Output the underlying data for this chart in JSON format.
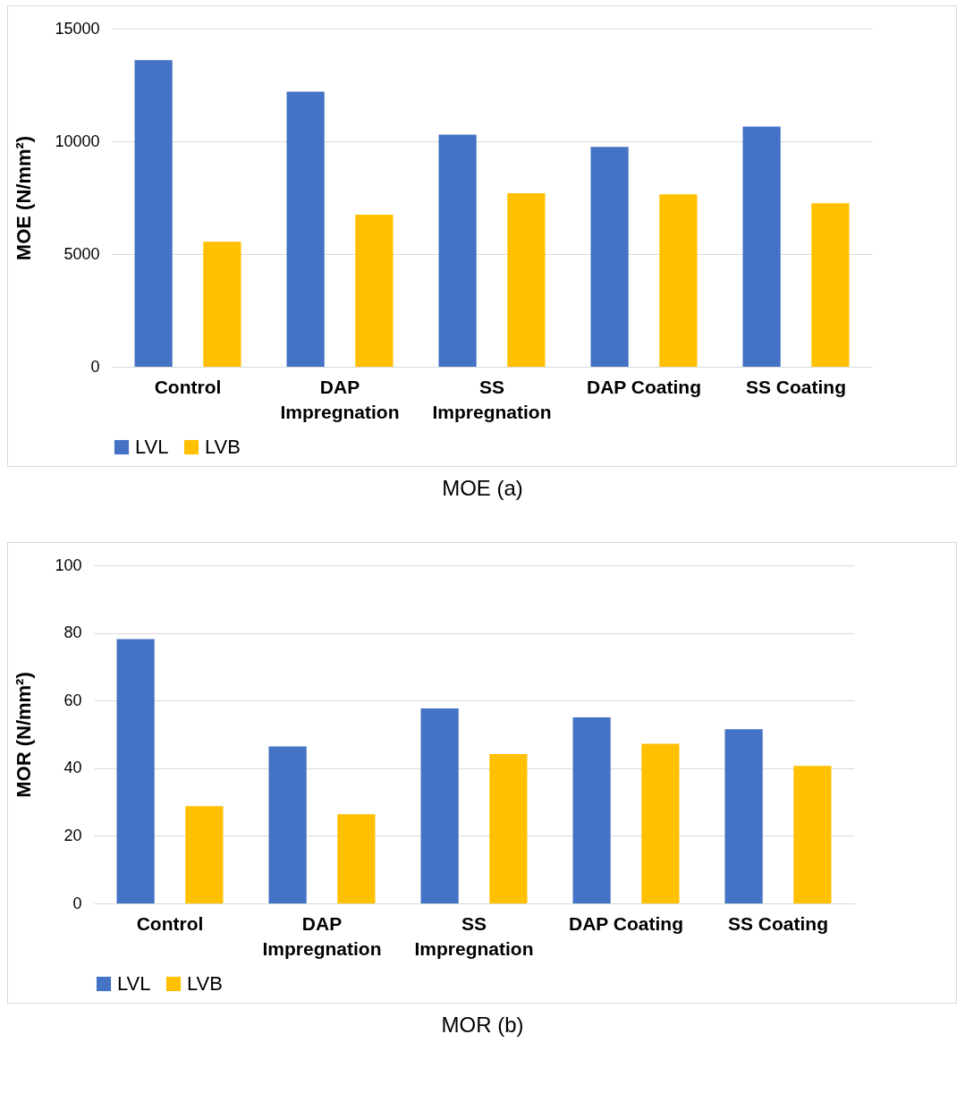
{
  "chart_data": [
    {
      "type": "bar",
      "title": "MOE (a)",
      "ylabel": "MOE (N/mm²)",
      "categories": [
        "Control",
        "DAP Impregnation",
        "SS Impregnation",
        "DAP Coating",
        "SS Coating"
      ],
      "series": [
        {
          "name": "LVL",
          "color": "#4472c4",
          "values": [
            13600,
            12200,
            10300,
            9750,
            10650
          ]
        },
        {
          "name": "LVB",
          "color": "#ffc000",
          "values": [
            5550,
            6750,
            7700,
            7650,
            7250
          ]
        }
      ],
      "ylim": [
        0,
        15000
      ],
      "yticks": [
        0,
        5000,
        10000,
        15000
      ],
      "grid": "y",
      "legend": "bottom"
    },
    {
      "type": "bar",
      "title": "MOR (b)",
      "ylabel": "MOR (N/mm²)",
      "categories": [
        "Control",
        "DAP Impregnation",
        "SS Impregnation",
        "DAP Coating",
        "SS Coating"
      ],
      "series": [
        {
          "name": "LVL",
          "color": "#4472c4",
          "values": [
            78.2,
            46.4,
            57.7,
            55.0,
            51.5
          ]
        },
        {
          "name": "LVB",
          "color": "#ffc000",
          "values": [
            28.8,
            26.4,
            44.2,
            47.2,
            40.7
          ]
        }
      ],
      "ylim": [
        0,
        100
      ],
      "yticks": [
        0,
        20,
        40,
        60,
        80,
        100
      ],
      "grid": "y",
      "legend": "bottom"
    }
  ]
}
